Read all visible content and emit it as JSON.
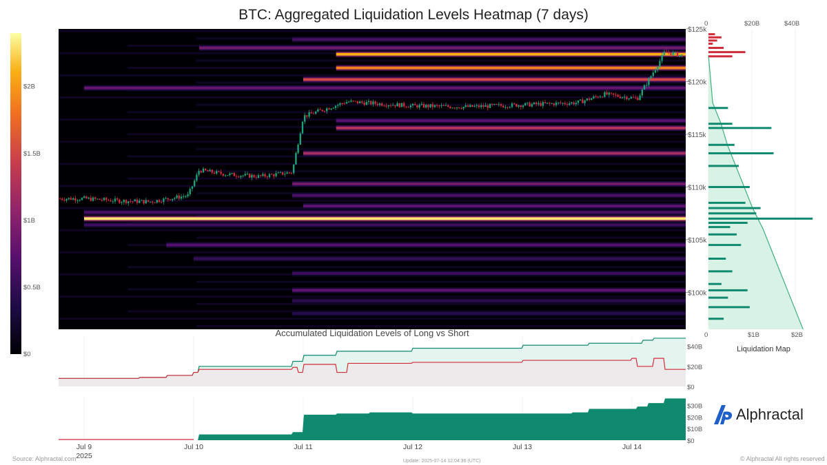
{
  "title": "BTC: Aggregated Liquidation Levels Heatmap (7 days)",
  "subtitle": "Accumulated Liquidation Levels of Long vs Short",
  "footer": {
    "source": "Source: Alphractal.com",
    "update": "Update: 2025-07-14 12:04:36 (UTC)",
    "copyright": "© Alphractal All rights reserved"
  },
  "logo": {
    "text": "Alphractal",
    "icon": "alphractal-logo-icon"
  },
  "colors": {
    "accent_green": "#0f8a6e",
    "accent_red": "#d12b3a",
    "heat_low": "#000004",
    "heat_high": "#fcffa4"
  },
  "chart_data": [
    {
      "type": "heatmap",
      "title": "BTC: Aggregated Liquidation Levels Heatmap (7 days)",
      "x_ticks": [
        "Jul 9",
        "Jul 10",
        "Jul 11",
        "Jul 12",
        "Jul 13",
        "Jul 14"
      ],
      "x_year": "2025",
      "y_ticks": [
        "$100k",
        "$105k",
        "$110k",
        "$115k",
        "$120k",
        "$125k"
      ],
      "ylim": [
        96500,
        125000
      ],
      "colorbar": {
        "ticks": [
          "$0",
          "$0.5B",
          "$1B",
          "$1.5B",
          "$2B"
        ],
        "range": [
          0,
          2.4
        ]
      },
      "price_checkpoints": {
        "day": [
          0,
          0.3,
          0.6,
          0.95,
          1.05,
          1.3,
          1.6,
          1.9,
          2.0,
          2.4,
          3.0,
          3.5,
          4.0,
          4.5,
          4.75,
          5.05,
          5.2,
          5.3,
          5.5,
          5.7
        ],
        "price": [
          108900,
          108700,
          108600,
          109200,
          111600,
          111200,
          111000,
          111400,
          116700,
          118100,
          117700,
          117600,
          117800,
          118000,
          118800,
          118400,
          121000,
          122800,
          122400,
          121500
        ]
      },
      "bands": [
        {
          "price": 107000,
          "start_day": 0.0,
          "intensity": 2.3
        },
        {
          "price": 106400,
          "start_day": 0.0,
          "intensity": 0.55
        },
        {
          "price": 107600,
          "start_day": 0.0,
          "intensity": 0.6
        },
        {
          "price": 108200,
          "start_day": 2.0,
          "intensity": 0.75
        },
        {
          "price": 109200,
          "start_day": 1.9,
          "intensity": 0.65
        },
        {
          "price": 110300,
          "start_day": 1.9,
          "intensity": 0.9
        },
        {
          "price": 113200,
          "start_day": 2.0,
          "intensity": 1.2
        },
        {
          "price": 115600,
          "start_day": 2.3,
          "intensity": 1.3
        },
        {
          "price": 116300,
          "start_day": 2.3,
          "intensity": 0.7
        },
        {
          "price": 119400,
          "start_day": 0.0,
          "intensity": 0.8
        },
        {
          "price": 120200,
          "start_day": 2.0,
          "intensity": 1.5
        },
        {
          "price": 121300,
          "start_day": 2.3,
          "intensity": 1.9
        },
        {
          "price": 122600,
          "start_day": 2.3,
          "intensity": 2.1
        },
        {
          "price": 123200,
          "start_day": 1.05,
          "intensity": 0.9
        },
        {
          "price": 124000,
          "start_day": 1.9,
          "intensity": 0.6
        },
        {
          "price": 104500,
          "start_day": 0.75,
          "intensity": 0.7
        },
        {
          "price": 103200,
          "start_day": 1.0,
          "intensity": 0.5
        },
        {
          "price": 101800,
          "start_day": 1.9,
          "intensity": 0.55
        },
        {
          "price": 100200,
          "start_day": 1.9,
          "intensity": 0.75
        },
        {
          "price": 99200,
          "start_day": 1.9,
          "intensity": 0.45
        },
        {
          "price": 98000,
          "start_day": 1.9,
          "intensity": 0.4
        }
      ]
    },
    {
      "type": "bar",
      "title": "Liquidation Map",
      "orientation": "horizontal",
      "x_ticks_top": [
        "0",
        "$20B",
        "$40B"
      ],
      "x_ticks_bottom": [
        "0",
        "$1B",
        "$2B"
      ],
      "short_bars": {
        "price": [
          124500,
          124200,
          123900,
          123600,
          123200,
          122800,
          122400
        ],
        "value_B": [
          0.15,
          0.3,
          0.2,
          0.1,
          0.35,
          0.85,
          0.55
        ]
      },
      "long_bars": {
        "price": [
          117500,
          116000,
          115600,
          114000,
          113200,
          112000,
          110000,
          108500,
          108000,
          107500,
          107000,
          106600,
          106200,
          105500,
          104500,
          103200,
          102000,
          100800,
          100200,
          99500,
          98600,
          97500
        ],
        "value_B": [
          0.45,
          0.55,
          1.45,
          0.6,
          1.5,
          0.7,
          0.95,
          0.85,
          1.2,
          1.1,
          2.4,
          0.9,
          0.5,
          0.65,
          0.75,
          0.4,
          0.55,
          0.3,
          0.9,
          0.45,
          0.95,
          0.35
        ]
      },
      "cumulative_B": {
        "price": [
          122500,
          118000,
          116000,
          114000,
          112000,
          110000,
          108000,
          106000,
          104000,
          102000,
          100000,
          98000,
          96500
        ],
        "value": [
          0,
          2,
          6,
          9,
          13,
          17,
          21,
          26,
          30,
          34,
          38,
          42,
          45
        ]
      }
    },
    {
      "type": "area",
      "title": "Accumulated Liquidation Levels of Long vs Short",
      "y_ticks": [
        "$0",
        "$20B",
        "$40B"
      ],
      "ylim": [
        0,
        50
      ],
      "series": [
        {
          "color": "#0f8a6e",
          "day": [
            0,
            0.5,
            0.75,
            1.0,
            1.05,
            1.9,
            2.0,
            2.3,
            3.0,
            4.0,
            4.6,
            5.1,
            5.2,
            5.7
          ],
          "values": [
            8,
            9,
            11,
            14,
            20,
            25,
            31,
            35,
            38,
            41,
            43,
            46,
            48,
            50
          ]
        },
        {
          "color": "#d12b3a",
          "day": [
            0,
            0.5,
            0.75,
            1.0,
            1.05,
            1.9,
            1.95,
            2.0,
            2.3,
            2.4,
            3.0,
            4.0,
            5.0,
            5.05,
            5.2,
            5.3,
            5.7
          ],
          "values": [
            8,
            9,
            11,
            14,
            17,
            19,
            14,
            22,
            14,
            23,
            24,
            26,
            28,
            20,
            28,
            17,
            16
          ]
        }
      ]
    },
    {
      "type": "area",
      "title": "",
      "y_ticks": [
        "$0",
        "$10B",
        "$20B",
        "$30B"
      ],
      "ylim": [
        0,
        38
      ],
      "series": [
        {
          "color": "#0f8a6e",
          "day": [
            0,
            1.0,
            1.05,
            1.9,
            2.0,
            2.3,
            2.6,
            3.0,
            4.0,
            4.45,
            4.6,
            5.0,
            5.05,
            5.15,
            5.3,
            5.7
          ],
          "values": [
            0,
            0,
            5,
            7,
            22,
            23,
            24,
            23,
            23,
            24,
            27,
            27,
            29,
            32,
            36,
            37
          ]
        }
      ]
    }
  ]
}
